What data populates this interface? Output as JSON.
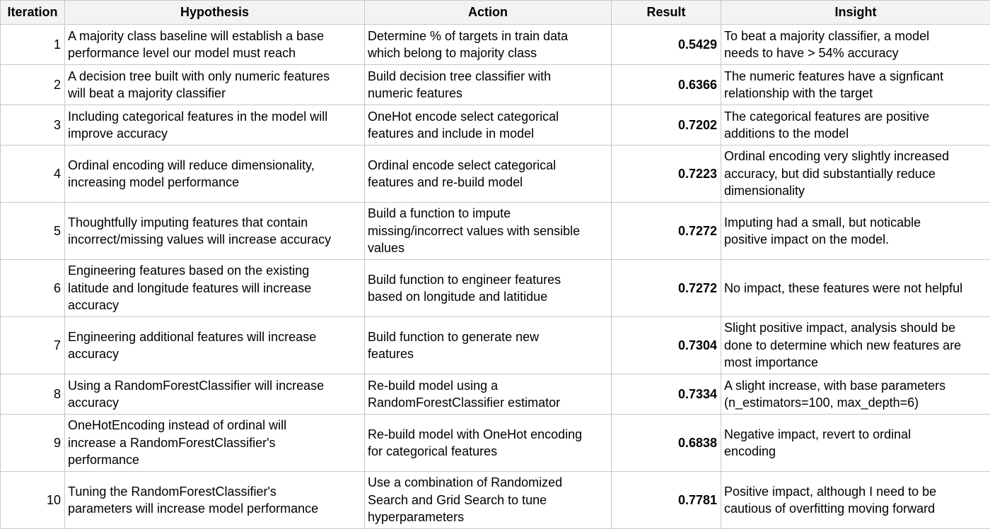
{
  "columns": [
    "Iteration",
    "Hypothesis",
    "Action",
    "Result",
    "Insight"
  ],
  "rows": [
    {
      "iteration": "1",
      "hypothesis": [
        "A majority class baseline will establish a base",
        "performance level our model must reach"
      ],
      "action": [
        "Determine % of targets in train data",
        "which belong to majority class"
      ],
      "result": "0.5429",
      "insight": [
        "To beat a majority classifier, a model",
        "needs to have > 54% accuracy"
      ]
    },
    {
      "iteration": "2",
      "hypothesis": [
        "A decision tree built with only numeric features",
        "will beat a majority classifier"
      ],
      "action": [
        "Build decision tree classifier with",
        "numeric features"
      ],
      "result": "0.6366",
      "insight": [
        "The numeric features have a signficant",
        "relationship with the target"
      ]
    },
    {
      "iteration": "3",
      "hypothesis": [
        "Including categorical features in the model will",
        "improve accuracy"
      ],
      "action": [
        "OneHot encode select categorical",
        "features and include in model"
      ],
      "result": "0.7202",
      "insight": [
        "The categorical features are positive",
        "additions to the model"
      ]
    },
    {
      "iteration": "4",
      "hypothesis": [
        "Ordinal encoding will reduce dimensionality,",
        "increasing model performance"
      ],
      "action": [
        "Ordinal encode select categorical",
        "features and re-build model"
      ],
      "result": "0.7223",
      "insight": [
        "Ordinal encoding very slightly increased",
        "accuracy, but did substantially reduce",
        "dimensionality"
      ]
    },
    {
      "iteration": "5",
      "hypothesis": [
        "Thoughtfully imputing features that contain",
        "incorrect/missing values will increase accuracy"
      ],
      "action": [
        "Build a function to impute",
        "missing/incorrect values with sensible",
        "values"
      ],
      "result": "0.7272",
      "insight": [
        "Imputing had a small, but noticable",
        "positive impact on the model."
      ]
    },
    {
      "iteration": "6",
      "hypothesis": [
        "Engineering features based on the existing",
        "latitude and longitude features will increase",
        "accuracy"
      ],
      "action": [
        "Build function to engineer features",
        "based on longitude and latitidue"
      ],
      "result": "0.7272",
      "insight": [
        "No impact, these features were not helpful"
      ]
    },
    {
      "iteration": "7",
      "hypothesis": [
        "Engineering additional features will increase",
        "accuracy"
      ],
      "action": [
        "Build function to generate new",
        "features"
      ],
      "result": "0.7304",
      "insight": [
        "Slight positive impact, analysis should be",
        "done to determine which new features are",
        "most importance"
      ]
    },
    {
      "iteration": "8",
      "hypothesis": [
        "Using a RandomForestClassifier will increase",
        "accuracy"
      ],
      "action": [
        "Re-build model using a",
        "RandomForestClassifier estimator"
      ],
      "result": "0.7334",
      "insight": [
        "A slight increase, with base parameters",
        "(n_estimators=100, max_depth=6)"
      ]
    },
    {
      "iteration": "9",
      "hypothesis": [
        "OneHotEncoding instead of ordinal will",
        "increase a RandomForestClassifier's",
        "performance"
      ],
      "action": [
        "Re-build model with OneHot encoding",
        "for categorical features"
      ],
      "result": "0.6838",
      "insight": [
        "Negative impact, revert to ordinal",
        "encoding"
      ]
    },
    {
      "iteration": "10",
      "hypothesis": [
        "Tuning the RandomForestClassifier's",
        "parameters will increase model performance"
      ],
      "action": [
        "Use a combination of Randomized",
        "Search and Grid Search to tune",
        "hyperparameters"
      ],
      "result": "0.7781",
      "insight": [
        "Positive impact, although I need to be",
        "cautious of overfitting moving forward"
      ]
    }
  ]
}
